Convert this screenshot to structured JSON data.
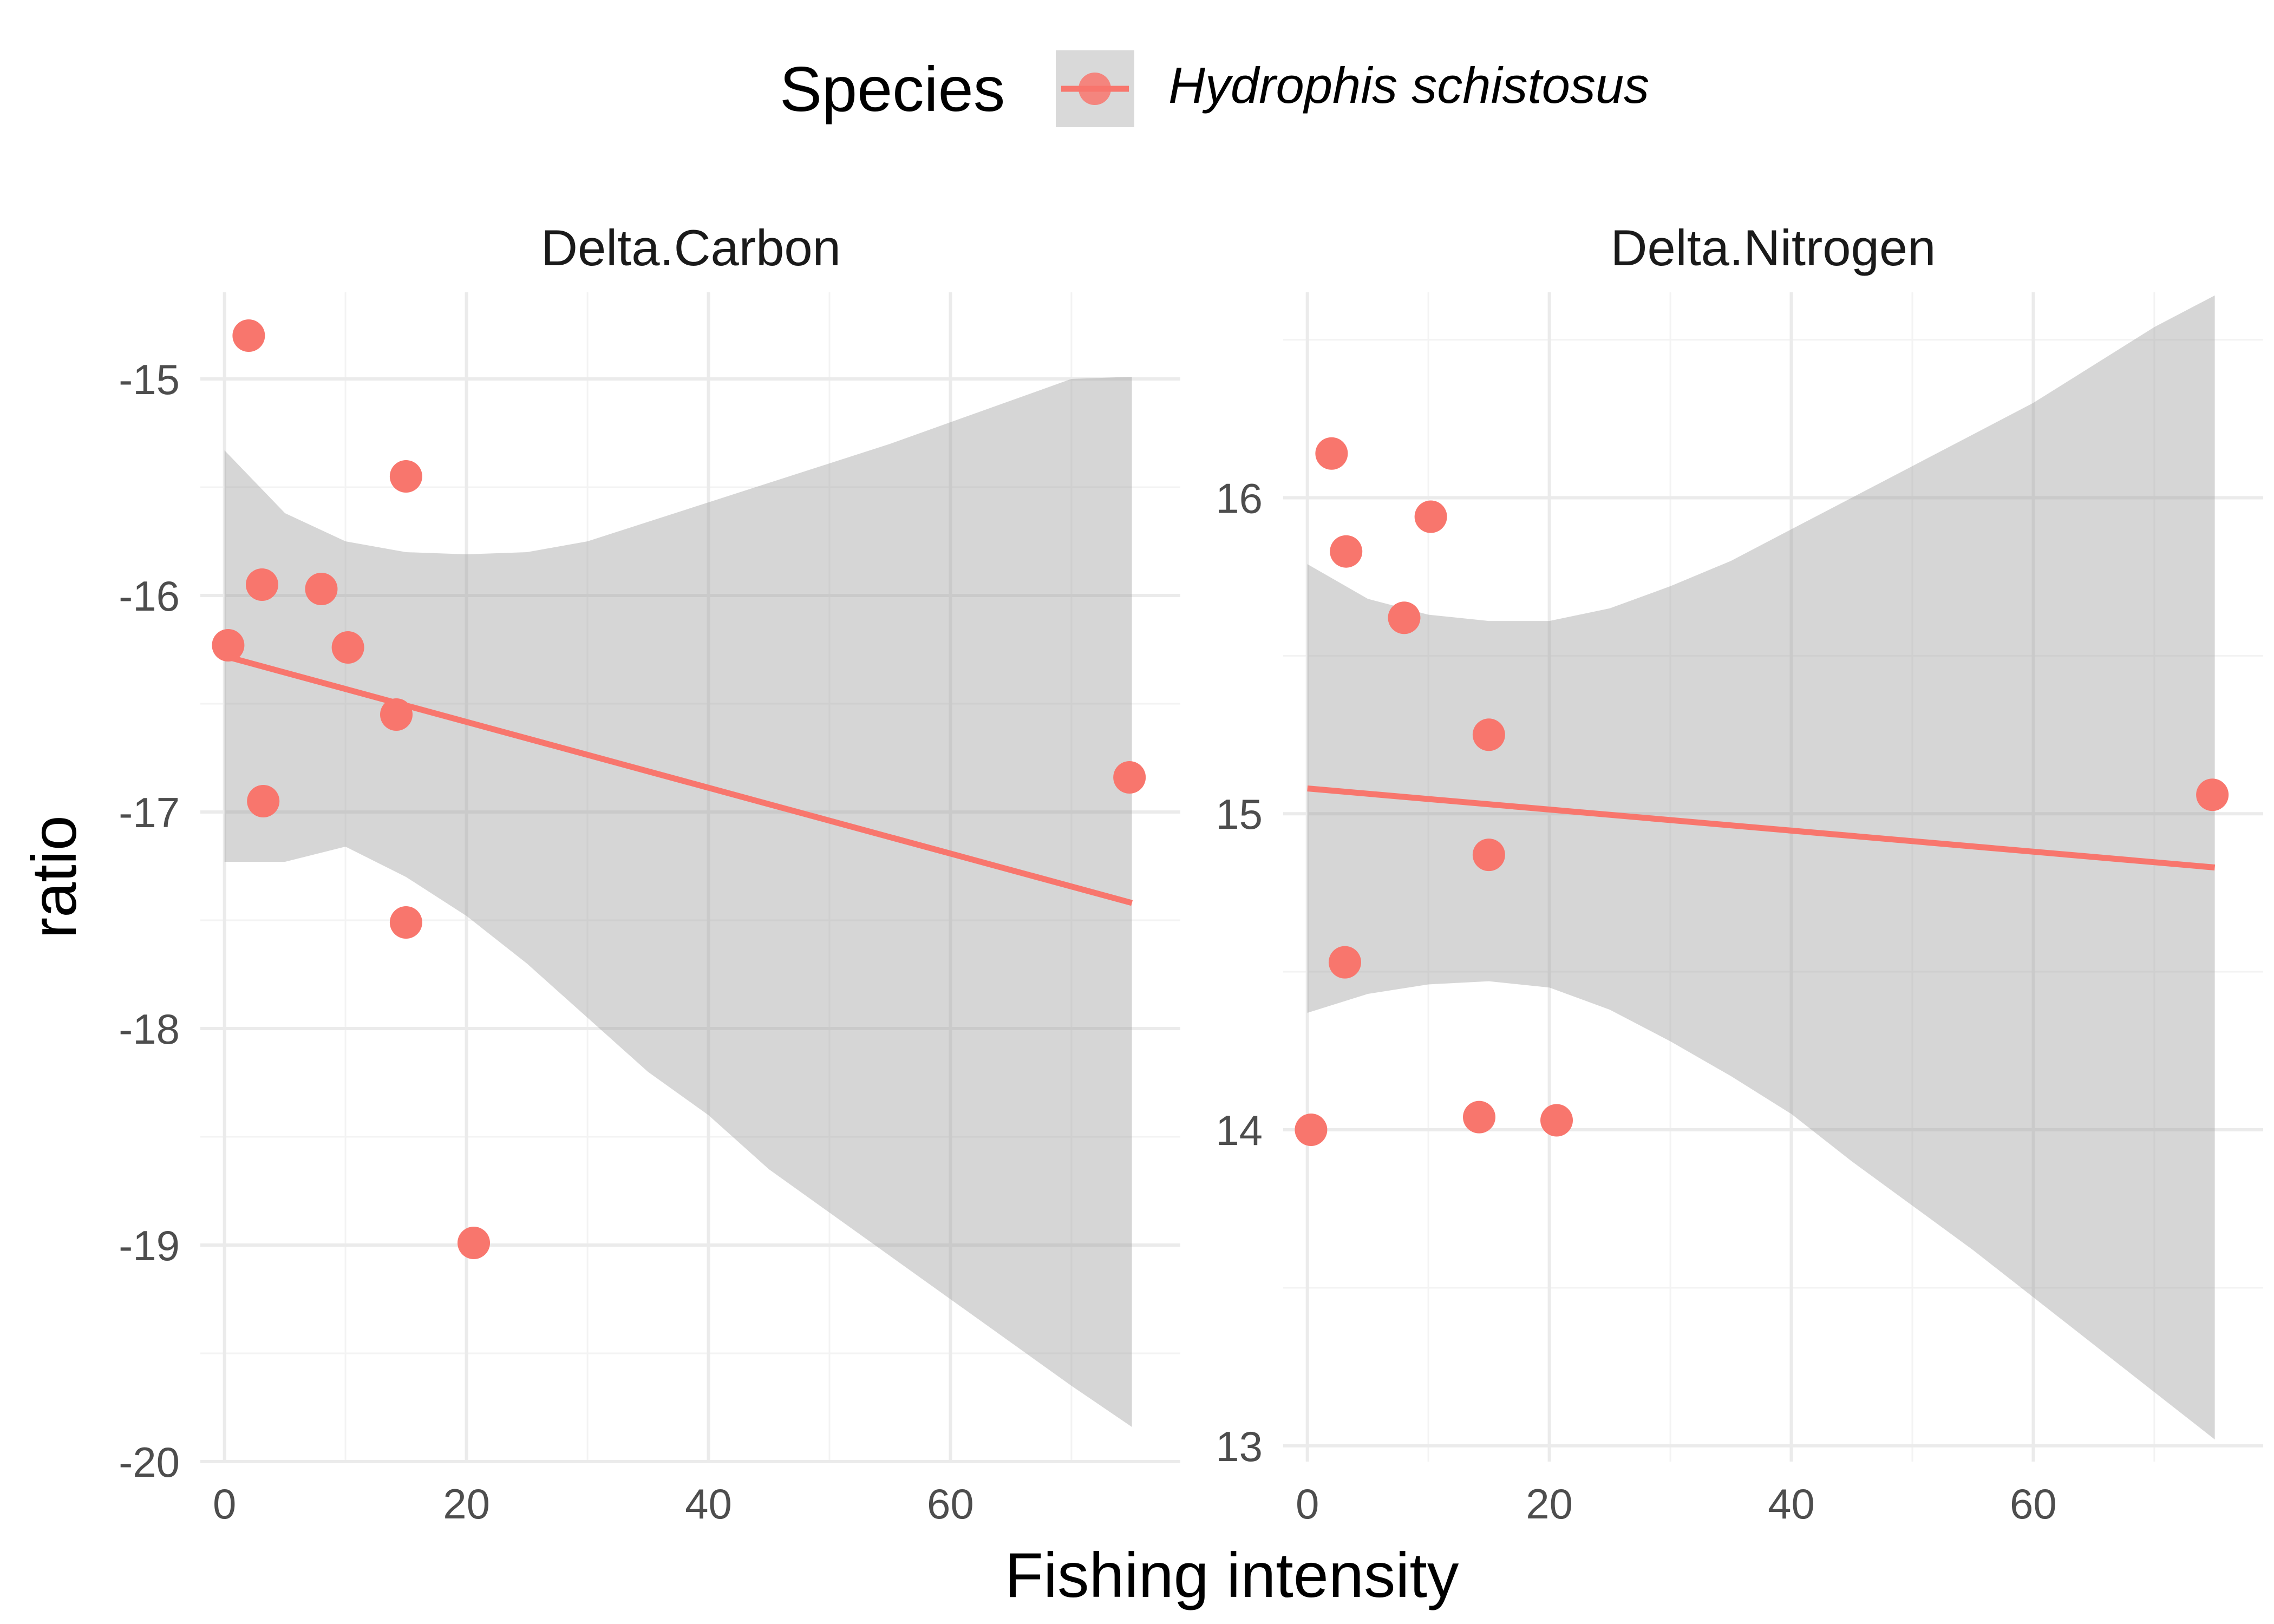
{
  "chart_data": {
    "type": "scatter",
    "xlabel": "Fishing intensity",
    "ylabel": "ratio",
    "legend": {
      "title": "Species",
      "entries": [
        "Hydrophis schistosus"
      ],
      "placement": "top"
    },
    "series_color": "#F8766D",
    "band_color": "#999999",
    "grid": true,
    "panels": [
      {
        "title": "Delta.Carbon",
        "xlim": [
          -2,
          79
        ],
        "ylim": [
          -20,
          -14.6
        ],
        "xticks": [
          0,
          20,
          40,
          60
        ],
        "yticks": [
          -20,
          -19,
          -18,
          -17,
          -16,
          -15
        ],
        "points": [
          {
            "x": 2.0,
            "y": -14.8
          },
          {
            "x": 15.0,
            "y": -15.45
          },
          {
            "x": 3.1,
            "y": -15.95
          },
          {
            "x": 8.0,
            "y": -15.97
          },
          {
            "x": 0.3,
            "y": -16.23
          },
          {
            "x": 10.2,
            "y": -16.24
          },
          {
            "x": 14.2,
            "y": -16.55
          },
          {
            "x": 3.2,
            "y": -16.95
          },
          {
            "x": 74.8,
            "y": -16.84
          },
          {
            "x": 15.0,
            "y": -17.51
          },
          {
            "x": 20.6,
            "y": -18.99
          }
        ],
        "fit": {
          "x": [
            0,
            75
          ],
          "y": [
            -16.28,
            -17.42
          ]
        },
        "band": {
          "x": [
            0,
            5,
            10,
            15,
            20,
            25,
            30,
            35,
            40,
            45,
            50,
            55,
            60,
            65,
            70,
            75
          ],
          "upper": [
            -15.33,
            -15.62,
            -15.75,
            -15.8,
            -15.81,
            -15.8,
            -15.75,
            -15.66,
            -15.57,
            -15.48,
            -15.39,
            -15.3,
            -15.2,
            -15.1,
            -15.0,
            -14.99
          ],
          "lower": [
            -17.23,
            -17.23,
            -17.16,
            -17.3,
            -17.48,
            -17.7,
            -17.95,
            -18.2,
            -18.4,
            -18.65,
            -18.85,
            -19.05,
            -19.25,
            -19.45,
            -19.65,
            -19.84
          ]
        }
      },
      {
        "title": "Delta.Nitrogen",
        "xlim": [
          -2,
          79
        ],
        "ylim": [
          12.95,
          16.65
        ],
        "xticks": [
          0,
          20,
          40,
          60
        ],
        "yticks": [
          13,
          14,
          15,
          16
        ],
        "points": [
          {
            "x": 2.0,
            "y": 16.14
          },
          {
            "x": 10.2,
            "y": 15.94
          },
          {
            "x": 3.2,
            "y": 15.83
          },
          {
            "x": 8.0,
            "y": 15.62
          },
          {
            "x": 15.0,
            "y": 15.25
          },
          {
            "x": 74.8,
            "y": 15.06
          },
          {
            "x": 15.0,
            "y": 14.87
          },
          {
            "x": 3.1,
            "y": 14.53
          },
          {
            "x": 14.2,
            "y": 14.04
          },
          {
            "x": 20.6,
            "y": 14.03
          },
          {
            "x": 0.3,
            "y": 14.0
          }
        ],
        "fit": {
          "x": [
            0,
            75
          ],
          "y": [
            15.08,
            14.83
          ]
        },
        "band": {
          "x": [
            0,
            5,
            10,
            15,
            20,
            25,
            30,
            35,
            40,
            45,
            50,
            55,
            60,
            65,
            70,
            75
          ],
          "upper": [
            15.79,
            15.68,
            15.63,
            15.61,
            15.61,
            15.65,
            15.72,
            15.8,
            15.9,
            16.0,
            16.1,
            16.2,
            16.3,
            16.42,
            16.54,
            16.64
          ],
          "lower": [
            14.37,
            14.43,
            14.46,
            14.47,
            14.45,
            14.38,
            14.28,
            14.17,
            14.05,
            13.9,
            13.76,
            13.62,
            13.47,
            13.32,
            13.17,
            13.02
          ]
        }
      }
    ]
  }
}
